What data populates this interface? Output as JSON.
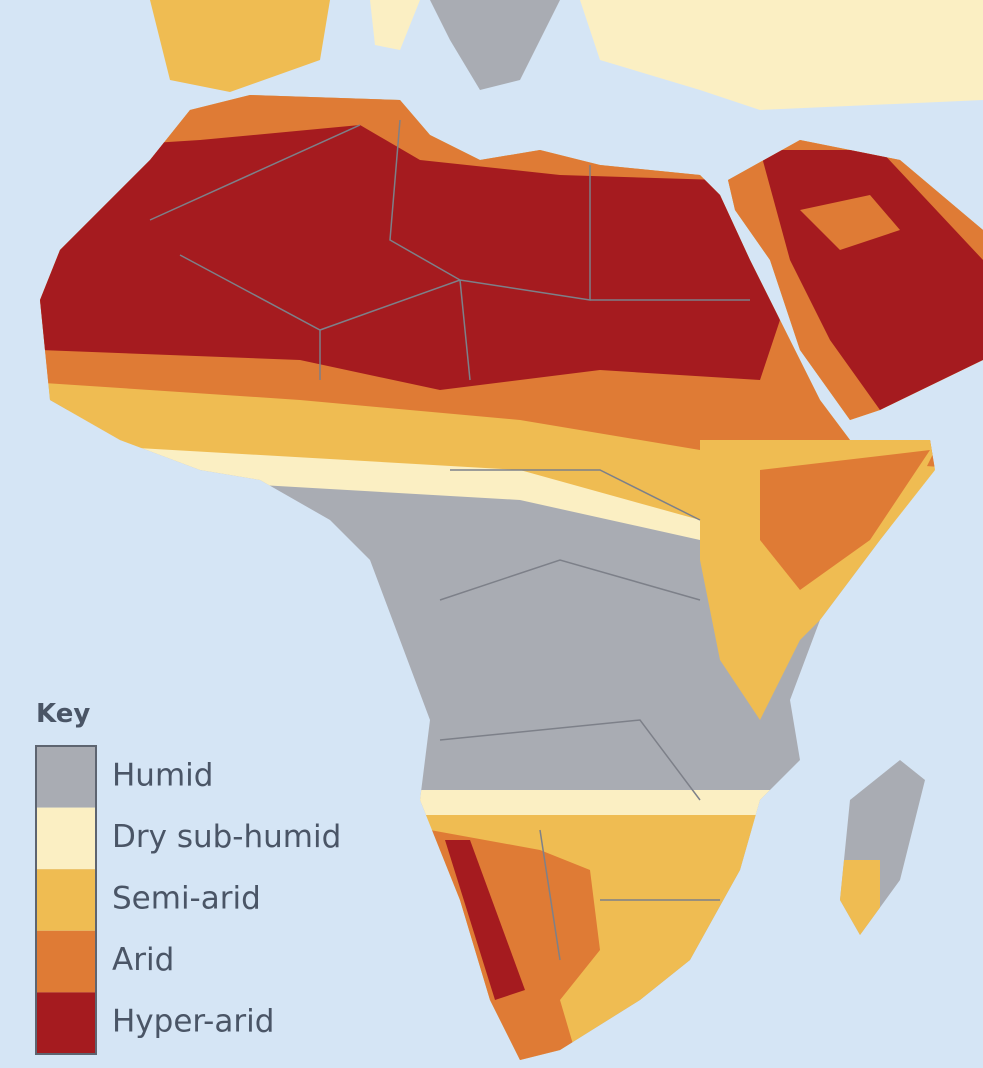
{
  "legend": {
    "title": "Key",
    "items": [
      {
        "label": "Humid",
        "color": "#a9acb3"
      },
      {
        "label": "Dry sub-humid",
        "color": "#fbefc3"
      },
      {
        "label": "Semi-arid",
        "color": "#efbc52"
      },
      {
        "label": "Arid",
        "color": "#df7b35"
      },
      {
        "label": "Hyper-arid",
        "color": "#a51b1f"
      }
    ]
  }
}
